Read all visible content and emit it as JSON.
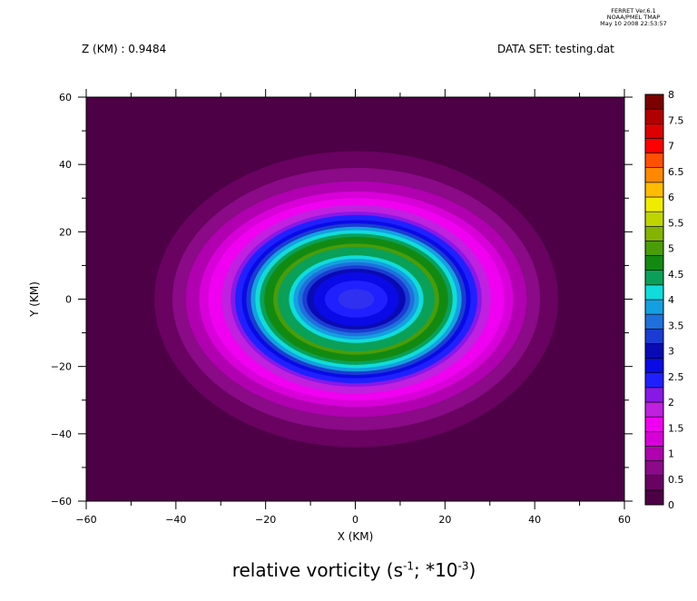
{
  "ferret_stamp": {
    "line1": "FERRET Ver.6.1",
    "line2": "NOAA/PMEL TMAP",
    "line3": "May 10 2008 22:53:57"
  },
  "header": {
    "z_label": "Z (KM) : 0.9484",
    "dataset_label": "DATA SET: testing.dat"
  },
  "colors": {
    "background": "#4d0045",
    "palette": [
      "#4d0045",
      "#690261",
      "#8a0a87",
      "#b000b0",
      "#d800d8",
      "#f000f0",
      "#c020e0",
      "#8818e6",
      "#2020ff",
      "#0a0ae6",
      "#0a0ab4",
      "#1a3cd2",
      "#1e70dc",
      "#14a0e0",
      "#10dcdc",
      "#0aa058",
      "#128a12",
      "#4a9c08",
      "#84b400",
      "#c0d400",
      "#f0ec00",
      "#ffbc00",
      "#ff8800",
      "#ff5000",
      "#ff0000",
      "#dc0000",
      "#b00000",
      "#7c0000"
    ]
  },
  "chart_data": {
    "type": "heatmap",
    "title": "relative vorticity (s",
    "title_sup1": "-1",
    "title_mid": "; *10",
    "title_sup2": "-3",
    "title_end": ")",
    "xlabel": "X (KM)",
    "ylabel": "Y (KM)",
    "xlim": [
      -60,
      60
    ],
    "ylim": [
      -60,
      60
    ],
    "x_ticks": [
      "−60",
      "−40",
      "−20",
      "0",
      "20",
      "40",
      "60"
    ],
    "y_ticks": [
      "60",
      "40",
      "20",
      "0",
      "−20",
      "−40",
      "−60"
    ],
    "colorbar": {
      "levels": [
        0,
        0.5,
        1,
        1.5,
        2,
        2.5,
        3,
        3.5,
        4,
        4.5,
        5,
        5.5,
        6,
        6.5,
        7,
        7.5,
        8
      ],
      "labels": [
        "0",
        "0.5",
        "1",
        "1.5",
        "2",
        "2.5",
        "3",
        "3.5",
        "4",
        "4.5",
        "5",
        "5.5",
        "6",
        "6.5",
        "7",
        "7.5",
        "8"
      ]
    },
    "field": {
      "center": [
        0,
        0
      ],
      "description_values": [
        {
          "r_km": 0,
          "value": 2.3
        },
        {
          "r_km": 8,
          "value": 2.8
        },
        {
          "r_km": 12,
          "value": 4.0
        },
        {
          "r_km": 17,
          "value": 4.6
        },
        {
          "r_km": 22,
          "value": 3.5
        },
        {
          "r_km": 27,
          "value": 2.0
        },
        {
          "r_km": 32,
          "value": 1.2
        },
        {
          "r_km": 38,
          "value": 0.7
        },
        {
          "r_km": 45,
          "value": 0.2
        }
      ]
    }
  }
}
